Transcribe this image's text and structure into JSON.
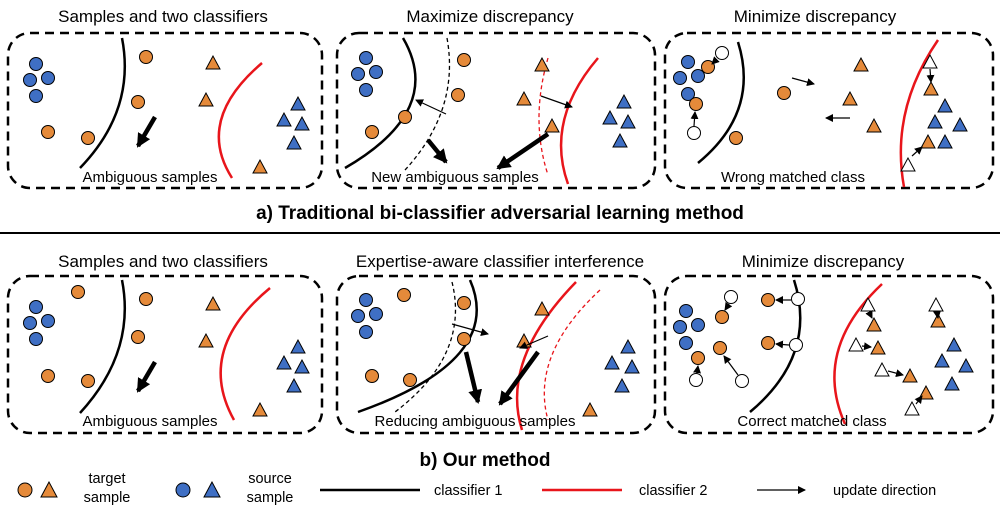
{
  "colors": {
    "target": "#e58a3a",
    "source": "#3f6fc4",
    "classifier1": "#000000",
    "classifier2": "#e8151b",
    "stroke": "#000000"
  },
  "row_a": {
    "caption": "a) Traditional bi-classifier adversarial learning method",
    "panels": [
      {
        "title": "Samples and two classifiers",
        "label": "Ambiguous samples"
      },
      {
        "title": "Maximize discrepancy",
        "label": "New ambiguous samples"
      },
      {
        "title": "Minimize discrepancy",
        "label": "Wrong matched class"
      }
    ]
  },
  "row_b": {
    "caption": "b) Our method",
    "panels": [
      {
        "title": "Samples and two classifiers",
        "label": "Ambiguous samples"
      },
      {
        "title": "Expertise-aware classifier interference",
        "label": "Reducing ambiguous samples"
      },
      {
        "title": "Minimize discrepancy",
        "label": "Correct matched class"
      }
    ]
  },
  "legend": {
    "target_line1": "target",
    "target_line2": "sample",
    "source_line1": "source",
    "source_line2": "sample",
    "classifier1": "classifier 1",
    "classifier2": "classifier 2",
    "update": "update direction"
  }
}
